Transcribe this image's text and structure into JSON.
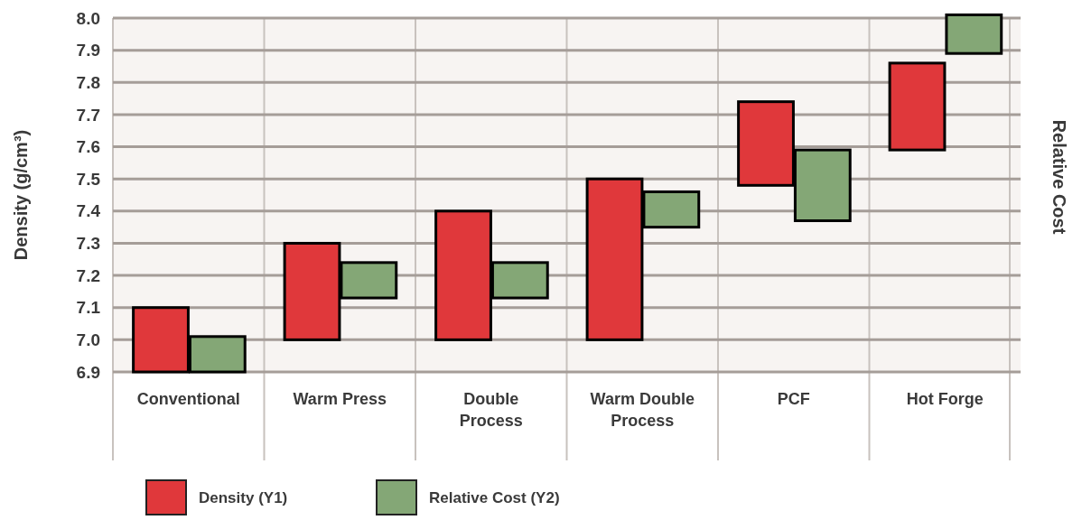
{
  "chart_data": {
    "type": "bar",
    "ylabel": "Density (g/cm³)",
    "y2label": "Relative Cost",
    "categories": [
      "Conventional",
      "Warm Press",
      "Double\nProcess",
      "Warm Double\nProcess",
      "PCF",
      "Hot Forge"
    ],
    "series": [
      {
        "name": "Density (Y1)",
        "color": "#e0383b",
        "base": [
          6.9,
          7.0,
          7.0,
          7.0,
          7.48,
          7.59
        ],
        "values": [
          0.2,
          0.3,
          0.4,
          0.5,
          0.26,
          0.27
        ]
      },
      {
        "name": "Relative Cost (Y2)",
        "color": "#84a776",
        "base": [
          6.9,
          7.13,
          7.13,
          7.35,
          7.37,
          7.89
        ],
        "values": [
          0.11,
          0.11,
          0.11,
          0.11,
          0.22,
          0.12
        ]
      }
    ],
    "ylim": [
      6.9,
      8.0
    ],
    "yticks": [
      {
        "value": 6.9,
        "label": "6.9"
      },
      {
        "value": 7.0,
        "label": "7.0"
      },
      {
        "value": 7.1,
        "label": "7.1"
      },
      {
        "value": 7.2,
        "label": "7.2"
      },
      {
        "value": 7.3,
        "label": "7.3"
      },
      {
        "value": 7.4,
        "label": "7.4"
      },
      {
        "value": 7.5,
        "label": "7.5"
      },
      {
        "value": 7.6,
        "label": "7.6"
      },
      {
        "value": 7.7,
        "label": "7.7"
      },
      {
        "value": 7.8,
        "label": "7.8"
      },
      {
        "value": 7.9,
        "label": "7.9"
      },
      {
        "value": 8.0,
        "label": "8.0"
      }
    ],
    "grid": true,
    "legend": "bottom left"
  }
}
